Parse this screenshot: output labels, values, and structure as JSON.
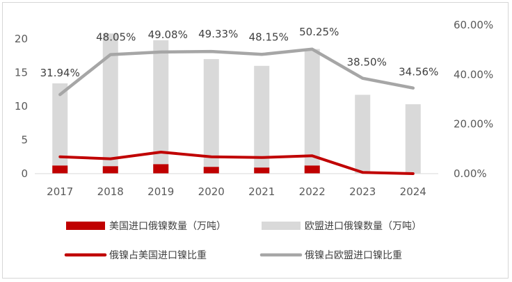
{
  "chart_data": {
    "type": "bar",
    "categories": [
      "2017",
      "2018",
      "2019",
      "2020",
      "2021",
      "2022",
      "2023",
      "2024"
    ],
    "series": [
      {
        "name": "美国进口俄镍数量（万吨）",
        "kind": "bar",
        "axis": "left",
        "color": "#c00000",
        "values": [
          1.2,
          1.1,
          1.4,
          1.0,
          0.9,
          1.2,
          0.0,
          0.0
        ]
      },
      {
        "name": "欧盟进口俄镍数量（万吨）",
        "kind": "bar",
        "axis": "left",
        "color": "#d9d9d9",
        "values": [
          13.4,
          20.8,
          19.8,
          17.0,
          16.0,
          18.5,
          11.7,
          10.3
        ]
      },
      {
        "name": "俄镍占美国进口镍比重",
        "kind": "line",
        "axis": "right",
        "color": "#c00000",
        "values": [
          6.8,
          6.0,
          8.7,
          6.8,
          6.5,
          7.2,
          0.5,
          0.0
        ]
      },
      {
        "name": "俄镍占欧盟进口镍比重",
        "kind": "line",
        "axis": "right",
        "color": "#a6a6a6",
        "values": [
          31.94,
          48.05,
          49.08,
          49.33,
          48.15,
          50.25,
          38.5,
          34.56
        ],
        "data_labels": [
          "31.94%",
          "48.05%",
          "49.08%",
          "49.33%",
          "48.15%",
          "50.25%",
          "38.50%",
          "34.56%"
        ]
      }
    ],
    "y_left": {
      "min": 0,
      "max": 20,
      "ticks": [
        "0",
        "5",
        "10",
        "15",
        "20"
      ]
    },
    "y_right": {
      "min": 0,
      "max": 60,
      "ticks": [
        "0.00%",
        "20.00%",
        "40.00%",
        "60.00%"
      ]
    },
    "legend_position": "bottom",
    "title": "",
    "grid": false
  }
}
